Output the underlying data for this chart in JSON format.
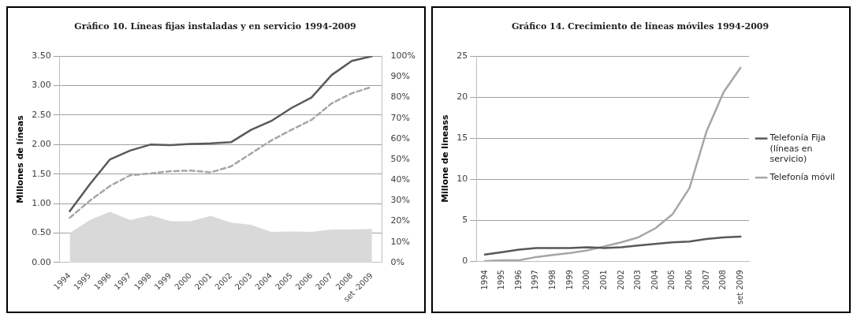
{
  "chart_data": [
    {
      "type": "line",
      "title": "Gráfico 10. Líneas fijas instaladas y en servicio 1994-2009",
      "ylabel": "Millones de líneas",
      "categories": [
        "1994",
        "1995",
        "1996",
        "1997",
        "1998",
        "1999",
        "2000",
        "2001",
        "2002",
        "2003",
        "2004",
        "2005",
        "2006",
        "2007",
        "2008",
        "set -2009"
      ],
      "series": [
        {
          "type": "area",
          "axis": "y2",
          "color": "#d9d9d9",
          "values": [
            14.3,
            20.6,
            24.6,
            20.6,
            22.9,
            20,
            20,
            22.6,
            19.4,
            18.3,
            14.9,
            15.1,
            14.9,
            16,
            16,
            16.3
          ]
        },
        {
          "type": "line",
          "color": "#595959",
          "line_style": "solid",
          "values": [
            0.87,
            1.33,
            1.75,
            1.9,
            2.0,
            1.99,
            2.01,
            2.02,
            2.04,
            2.25,
            2.4,
            2.62,
            2.8,
            3.18,
            3.42,
            3.5
          ]
        },
        {
          "type": "line",
          "color": "#a6a6a6",
          "line_style": "dashed",
          "values": [
            0.76,
            1.05,
            1.3,
            1.48,
            1.51,
            1.55,
            1.56,
            1.53,
            1.63,
            1.85,
            2.07,
            2.25,
            2.42,
            2.7,
            2.87,
            2.98
          ]
        }
      ],
      "ylim": [
        0,
        3.5
      ],
      "yticks": [
        {
          "value": 0,
          "label": "0.00"
        },
        {
          "value": 0.5,
          "label": "0.50"
        },
        {
          "value": 1,
          "label": "1.00"
        },
        {
          "value": 1.5,
          "label": "1.50"
        },
        {
          "value": 2,
          "label": "2.00"
        },
        {
          "value": 2.5,
          "label": "2.50"
        },
        {
          "value": 3,
          "label": "3.00"
        },
        {
          "value": 3.5,
          "label": "3.50"
        }
      ],
      "y2lim": [
        0,
        100
      ],
      "y2ticks": [
        {
          "value": 0,
          "label": "0%"
        },
        {
          "value": 10,
          "label": "10%"
        },
        {
          "value": 20,
          "label": "20%"
        },
        {
          "value": 30,
          "label": "30%"
        },
        {
          "value": 40,
          "label": "40%"
        },
        {
          "value": 50,
          "label": "50%"
        },
        {
          "value": 60,
          "label": "60%"
        },
        {
          "value": 70,
          "label": "70%"
        },
        {
          "value": 80,
          "label": "80%"
        },
        {
          "value": 90,
          "label": "90%"
        },
        {
          "value": 100,
          "label": "100%"
        }
      ],
      "grid": "y",
      "legend": false,
      "marker": "none"
    },
    {
      "type": "line",
      "title": "Gráfico 14. Crecimiento de líneas móviles 1994-2009",
      "ylabel": "Millone de lineass",
      "categories": [
        "1994",
        "1995",
        "1996",
        "1997",
        "1998",
        "1999",
        "2000",
        "2001",
        "2002",
        "2003",
        "2004",
        "2005",
        "2006",
        "2007",
        "2008",
        "set 2009"
      ],
      "series": [
        {
          "name": "Telefonía Fija (líneas en servicio)",
          "color": "#595959",
          "values": [
            0.8,
            1.1,
            1.4,
            1.6,
            1.6,
            1.6,
            1.7,
            1.6,
            1.7,
            1.9,
            2.1,
            2.3,
            2.4,
            2.7,
            2.9,
            3.0
          ]
        },
        {
          "name": "Telefonía móvil",
          "color": "#a6a6a6",
          "values": [
            0,
            0.1,
            0.1,
            0.5,
            0.75,
            1.0,
            1.3,
            1.8,
            2.3,
            2.9,
            4.0,
            5.7,
            8.9,
            15.8,
            20.6,
            23.6
          ]
        }
      ],
      "ylim": [
        0,
        25
      ],
      "yticks": [
        0,
        5,
        10,
        15,
        20,
        25
      ],
      "grid": "y",
      "legend": "right",
      "marker": "none"
    }
  ]
}
